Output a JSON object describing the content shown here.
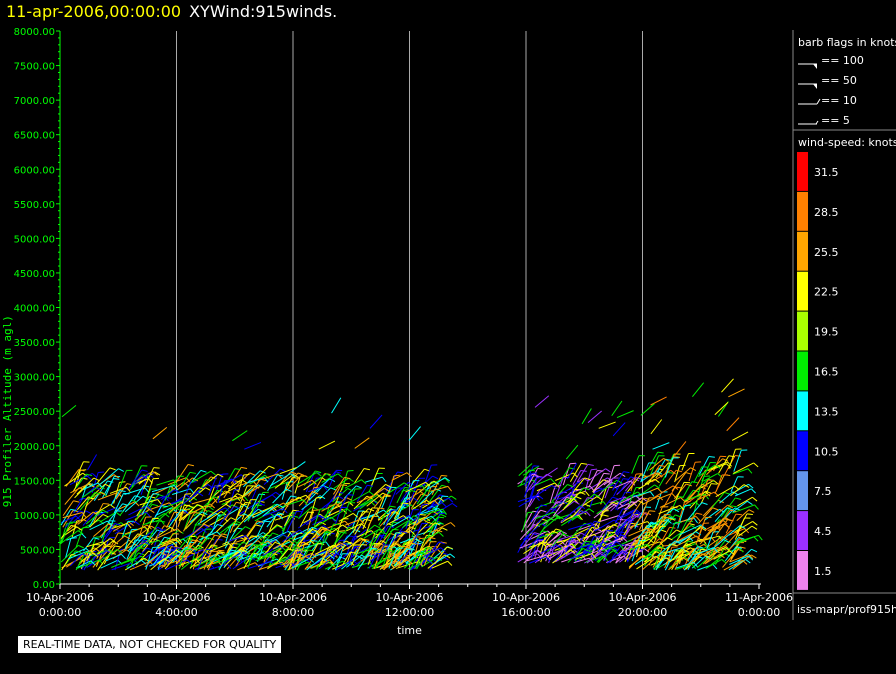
{
  "title": {
    "timestamp": "11-apr-2006,00:00:00",
    "product": "XYWind:915winds."
  },
  "qc_notice": "REAL-TIME DATA, NOT CHECKED FOR QUALITY",
  "source": "iss-mapr/prof915h",
  "colors": {
    "axis_y": "#00ff00",
    "axis_x": "#ffffff",
    "grid": "#aaaaaa",
    "background": "#000000"
  },
  "barb_legend": {
    "title": "barb flags in knots",
    "items": [
      {
        "type": "pennant",
        "label": "== 100"
      },
      {
        "type": "pennant",
        "label": "== 50"
      },
      {
        "type": "full",
        "label": "== 10"
      },
      {
        "type": "half",
        "label": "== 5"
      }
    ]
  },
  "speed_legend": {
    "title": "wind-speed: knots",
    "bins": [
      {
        "label": "31.5",
        "color": "#ff0000"
      },
      {
        "label": "28.5",
        "color": "#ff8000"
      },
      {
        "label": "25.5",
        "color": "#ffa500"
      },
      {
        "label": "22.5",
        "color": "#ffff00"
      },
      {
        "label": "19.5",
        "color": "#aaff00"
      },
      {
        "label": "16.5",
        "color": "#00ee00"
      },
      {
        "label": "13.5",
        "color": "#00ffff"
      },
      {
        "label": "10.5",
        "color": "#0000ff"
      },
      {
        "label": "7.5",
        "color": "#6495ed"
      },
      {
        "label": "4.5",
        "color": "#9b30ff"
      },
      {
        "label": "1.5",
        "color": "#ee82ee"
      }
    ]
  },
  "chart_data": {
    "type": "scatter",
    "xlabel": "time",
    "ylabel": "915 Profiler Altitude (m agl)",
    "ylim": [
      0,
      8000
    ],
    "xlim_hours": [
      0,
      24
    ],
    "y_ticks": [
      "0.00",
      "500.00",
      "1000.00",
      "1500.00",
      "2000.00",
      "2500.00",
      "3000.00",
      "3500.00",
      "4000.00",
      "4500.00",
      "5000.00",
      "5500.00",
      "6000.00",
      "6500.00",
      "7000.00",
      "7500.00",
      "8000.00"
    ],
    "x_ticks": [
      {
        "date": "10-Apr-2006",
        "time": "0:00:00"
      },
      {
        "date": "10-Apr-2006",
        "time": "4:00:00"
      },
      {
        "date": "10-Apr-2006",
        "time": "8:00:00"
      },
      {
        "date": "10-Apr-2006",
        "time": "12:00:00"
      },
      {
        "date": "10-Apr-2006",
        "time": "16:00:00"
      },
      {
        "date": "10-Apr-2006",
        "time": "20:00:00"
      },
      {
        "date": "11-Apr-2006",
        "time": "0:00:00"
      }
    ],
    "grid": "vertical",
    "segments": [
      {
        "start_h": 0.0,
        "end_h": 12.9,
        "top_m": 1500,
        "bottom_m": 200,
        "dominant": [
          "#ffff00",
          "#00ffff",
          "#00ee00",
          "#0000ff",
          "#ffa500"
        ]
      },
      {
        "start_h": 15.7,
        "end_h": 19.5,
        "top_m": 1500,
        "bottom_m": 300,
        "dominant": [
          "#9b30ff",
          "#0000ff",
          "#00ee00",
          "#ffff00",
          "#ee82ee"
        ]
      },
      {
        "start_h": 19.5,
        "end_h": 23.3,
        "top_m": 1700,
        "bottom_m": 200,
        "dominant": [
          "#ffa500",
          "#ffff00",
          "#ff8000",
          "#00ee00",
          "#00ffff"
        ]
      }
    ]
  }
}
